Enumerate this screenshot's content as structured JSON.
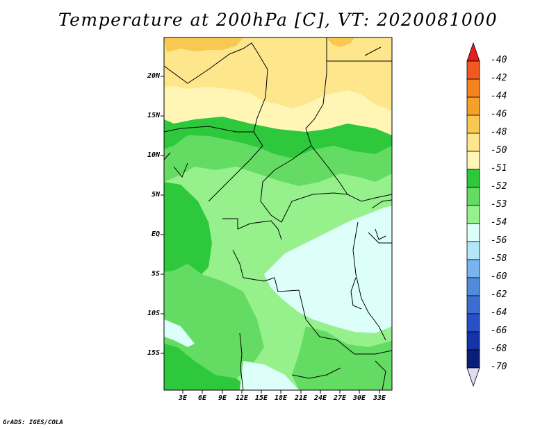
{
  "title": "Temperature at 200hPa [C], VT: 2020081000",
  "credit": "GrADS: IGES/COLA",
  "lat_labels": [
    "20N",
    "15N",
    "10N",
    "5N",
    "EQ",
    "5S",
    "10S",
    "15S"
  ],
  "lon_labels": [
    "3E",
    "6E",
    "9E",
    "12E",
    "15E",
    "18E",
    "21E",
    "24E",
    "27E",
    "30E",
    "33E"
  ],
  "colorbar": {
    "labels": [
      "-40",
      "-42",
      "-44",
      "-46",
      "-48",
      "-50",
      "-51",
      "-52",
      "-53",
      "-54",
      "-56",
      "-58",
      "-60",
      "-62",
      "-64",
      "-66",
      "-68",
      "-70"
    ],
    "colors": [
      "#e61e1e",
      "#f05a1e",
      "#f5821e",
      "#f5a028",
      "#f8c850",
      "#fde68c",
      "#fff5b4",
      "#2ec83c",
      "#64dc64",
      "#96f08c",
      "#dcfffa",
      "#b4e6fa",
      "#78b4f0",
      "#508cdc",
      "#3c6ed2",
      "#2850c8",
      "#1432aa",
      "#0a1e78",
      "#dcdcf5"
    ]
  },
  "map_colors": {
    "c_minus_48": "#f8c850",
    "c_minus_50": "#fde68c",
    "c_minus_51": "#fff5b4",
    "c_minus_52": "#2ec83c",
    "c_minus_53": "#64dc64",
    "c_minus_54": "#96f08c",
    "c_minus_56": "#dcfffa"
  }
}
